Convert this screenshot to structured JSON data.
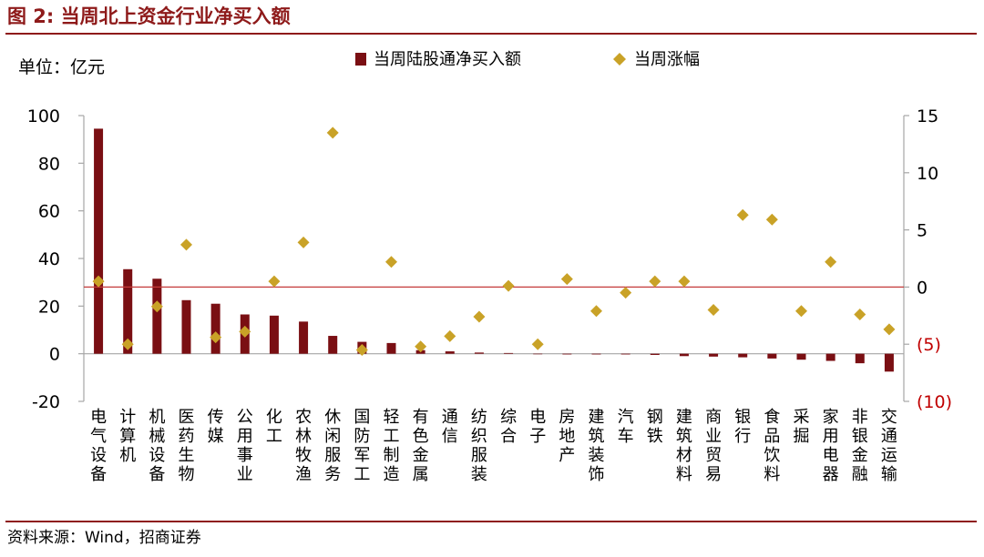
{
  "figure": {
    "title": "图 2:  当周北上资金行业净买入额",
    "source": "资料来源：Wind，招商证券",
    "unit_label": "单位：亿元"
  },
  "colors": {
    "bar": "#7a0f13",
    "marker": "#c9a227",
    "accent": "#8e1a1a",
    "zero_line": "#c43a3a",
    "axis": "#a6a6a6"
  },
  "chart_data": {
    "type": "bar",
    "title": "当周北上资金行业净买入额",
    "xlabel": "",
    "ylabel": "亿元",
    "categories": [
      "电气设备",
      "计算机",
      "机械设备",
      "医药生物",
      "传媒",
      "公用事业",
      "化工",
      "农林牧渔",
      "休闲服务",
      "国防军工",
      "轻工制造",
      "有色金属",
      "通信",
      "纺织服装",
      "综合",
      "电子",
      "房地产",
      "建筑装饰",
      "汽车",
      "钢铁",
      "建筑材料",
      "商业贸易",
      "银行",
      "食品饮料",
      "采掘",
      "家用电器",
      "非银金融",
      "交通运输"
    ],
    "series": [
      {
        "name": "当周陆股通净买入额",
        "type": "bar",
        "axis": "left",
        "values": [
          94.5,
          35.5,
          31.5,
          22.5,
          21,
          16.5,
          16,
          13.5,
          7.5,
          5,
          4.5,
          1.5,
          1,
          0.5,
          0.3,
          -0.2,
          -0.3,
          -0.3,
          -0.3,
          -0.5,
          -1,
          -1.2,
          -1.5,
          -2,
          -2.5,
          -3,
          -4,
          -7.5
        ]
      },
      {
        "name": "当周涨幅",
        "type": "scatter",
        "axis": "right",
        "values": [
          0.5,
          -5,
          -1.7,
          3.7,
          -4.4,
          -3.9,
          0.5,
          3.9,
          13.5,
          -5.5,
          2.2,
          -5.2,
          -4.3,
          -2.6,
          0.1,
          -5,
          0.7,
          -2.1,
          -0.5,
          0.5,
          0.5,
          -2,
          6.3,
          5.9,
          -2.1,
          2.2,
          -2.4,
          -3.7
        ]
      }
    ],
    "left_axis": {
      "min": -20,
      "max": 100,
      "ticks": [
        -20,
        0,
        20,
        40,
        60,
        80,
        100
      ],
      "tick_labels": [
        "-20",
        "0",
        "20",
        "40",
        "60",
        "80",
        "100"
      ]
    },
    "right_axis": {
      "min": -10,
      "max": 15,
      "ticks": [
        -10,
        -5,
        0,
        5,
        10,
        15
      ],
      "tick_labels": [
        "(10)",
        "(5)",
        "0",
        "5",
        "10",
        "15"
      ]
    },
    "reference_line": {
      "axis": "right",
      "value": 0
    },
    "legend": {
      "position": "top",
      "entries": [
        "当周陆股通净买入额",
        "当周涨幅"
      ]
    }
  }
}
